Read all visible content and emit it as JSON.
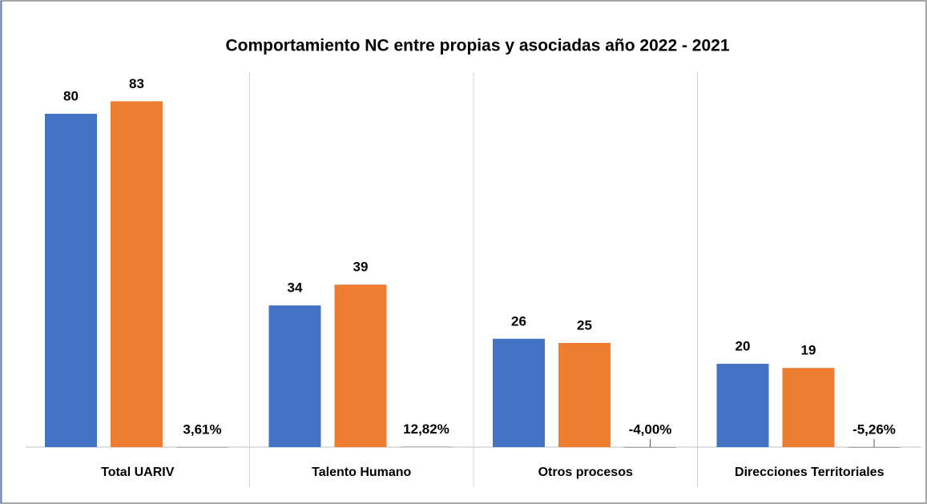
{
  "chart_data": {
    "type": "bar",
    "title": "Comportamiento NC  entre propias y asociadas año 2022 - 2021",
    "categories": [
      "Total UARIV",
      "Talento Humano",
      "Otros procesos",
      "Direcciones Territoriales"
    ],
    "series": [
      {
        "color": "#4472c4",
        "values": [
          80,
          34,
          26,
          20
        ]
      },
      {
        "color": "#ed7d31",
        "values": [
          83,
          39,
          25,
          19
        ]
      },
      {
        "color": "#a5a5a5",
        "values": [
          0.0361,
          0.1282,
          -0.04,
          -0.0526
        ],
        "value_labels": [
          "3,61%",
          "12,82%",
          "-4,00%",
          "-5,26%"
        ]
      }
    ],
    "ylim": [
      0,
      90
    ]
  }
}
